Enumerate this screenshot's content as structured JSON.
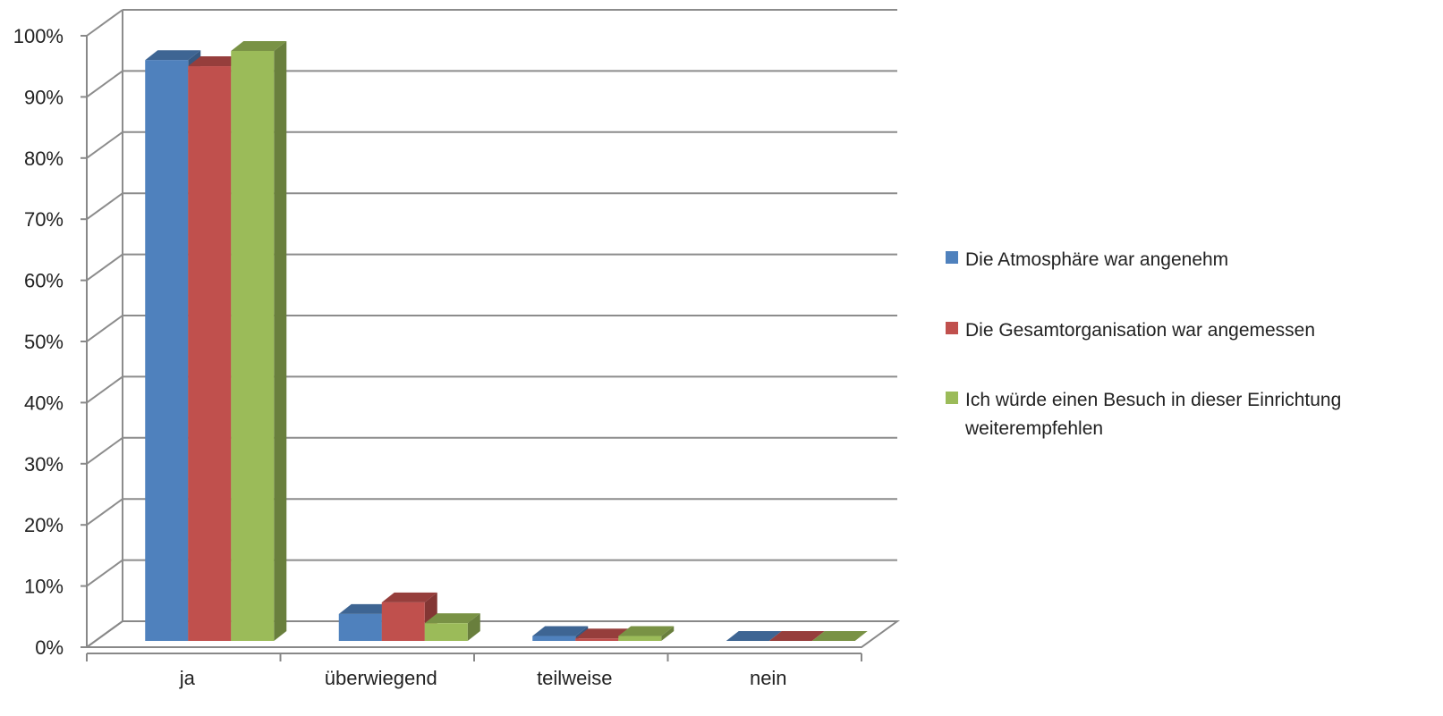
{
  "chart_data": {
    "type": "bar",
    "style": "3d-clustered-column",
    "categories": [
      "ja",
      "überwiegend",
      "teilweise",
      "nein"
    ],
    "series": [
      {
        "name": "Die Atmosphäre war angenehm",
        "color": "#4F81BD",
        "values": [
          95,
          4.4,
          0.8,
          0
        ]
      },
      {
        "name": "Die Gesamtorganisation war angemessen",
        "color": "#C0504D",
        "values": [
          94,
          6.3,
          0.4,
          0
        ]
      },
      {
        "name": "Ich würde einen Besuch in dieser Einrichtung weiterempfehlen",
        "name_lines": [
          "Ich würde einen Besuch in dieser Einrichtung",
          "weiterempfehlen"
        ],
        "color": "#9BBB59",
        "values": [
          96.5,
          2.9,
          0.8,
          0
        ]
      }
    ],
    "ylim": [
      0,
      100
    ],
    "yticks": [
      "0%",
      "10%",
      "20%",
      "30%",
      "40%",
      "50%",
      "60%",
      "70%",
      "80%",
      "90%",
      "100%"
    ],
    "grid": true,
    "legend_position": "right",
    "title": "",
    "xlabel": "",
    "ylabel": ""
  }
}
